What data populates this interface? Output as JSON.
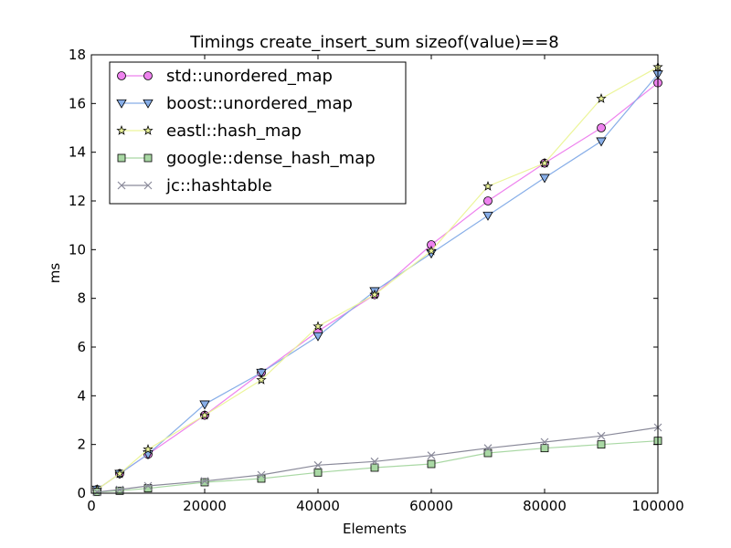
{
  "chart_data": {
    "type": "line",
    "title": "Timings create_insert_sum sizeof(value)==8",
    "xlabel": "Elements",
    "ylabel": "ms",
    "xlim": [
      0,
      100000
    ],
    "ylim": [
      0,
      18
    ],
    "xticks": [
      0,
      20000,
      40000,
      60000,
      80000,
      100000
    ],
    "yticks": [
      0,
      2,
      4,
      6,
      8,
      10,
      12,
      14,
      16,
      18
    ],
    "grid": false,
    "legend_position": "upper-left",
    "x": [
      1000,
      5000,
      10000,
      20000,
      30000,
      40000,
      50000,
      60000,
      70000,
      80000,
      90000,
      100000
    ],
    "series": [
      {
        "name": "std::unordered_map",
        "marker": "circle",
        "color": "#ee82ee",
        "values": [
          0.15,
          0.8,
          1.6,
          3.2,
          4.95,
          6.65,
          8.15,
          10.2,
          12.0,
          13.55,
          15.0,
          16.85
        ]
      },
      {
        "name": "boost::unordered_map",
        "marker": "triangle-down",
        "color": "#87aee8",
        "values": [
          0.15,
          0.8,
          1.6,
          3.65,
          4.95,
          6.45,
          8.3,
          9.85,
          11.4,
          12.95,
          14.45,
          17.2
        ]
      },
      {
        "name": "eastl::hash_map",
        "marker": "star",
        "color": "#ecf59a",
        "values": [
          0.15,
          0.8,
          1.8,
          3.2,
          4.65,
          6.85,
          8.15,
          9.95,
          12.6,
          13.55,
          16.2,
          17.5
        ]
      },
      {
        "name": "google::dense_hash_map",
        "marker": "square",
        "color": "#a9d8a4",
        "values": [
          0.05,
          0.1,
          0.2,
          0.45,
          0.6,
          0.85,
          1.05,
          1.2,
          1.65,
          1.85,
          2.0,
          2.15
        ]
      },
      {
        "name": "jc::hashtable",
        "marker": "x",
        "color": "#8a8a9a",
        "values": [
          0.05,
          0.15,
          0.3,
          0.5,
          0.75,
          1.15,
          1.3,
          1.55,
          1.85,
          2.1,
          2.35,
          2.7
        ]
      }
    ]
  }
}
